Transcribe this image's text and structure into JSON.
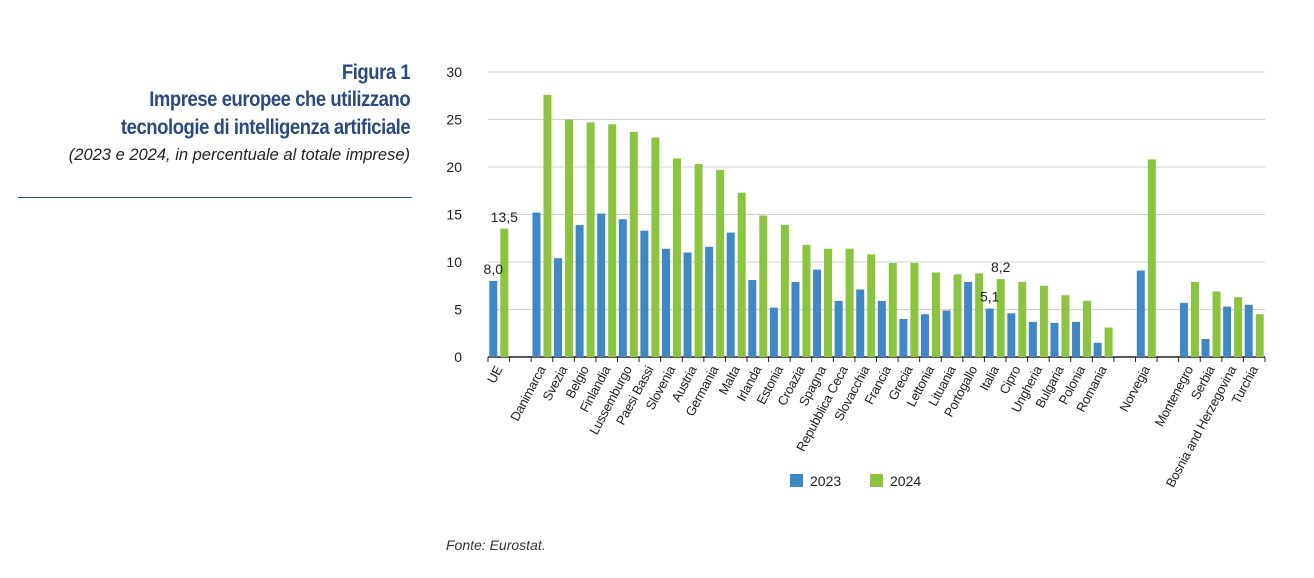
{
  "figure": {
    "number": "Figura 1",
    "title_line1": "Imprese europee che utilizzano",
    "title_line2": "tecnologie di intelligenza artificiale",
    "subtitle": "(2023 e 2024, in percentuale al totale imprese)",
    "source": "Fonte: Eurostat."
  },
  "chart_data": {
    "type": "bar",
    "categories": [
      "UE",
      "",
      "Danimarca",
      "Svezia",
      "Belgio",
      "Finlandia",
      "Lussemburgo",
      "Paesi Bassi",
      "Slovenia",
      "Austria",
      "Germania",
      "Malta",
      "Irlanda",
      "Estonia",
      "Croazia",
      "Spagna",
      "Repubblica Ceca",
      "Slovacchia",
      "Francia",
      "Grecia",
      "Lettonia",
      "Lituania",
      "Portogallo",
      "Italia",
      "Cipro",
      "Ungheria",
      "Bulgaria",
      "Polonia",
      "Romania",
      "",
      "Norvegia",
      "",
      "Montenegro",
      "Serbia",
      "Bosnia and Herzegovina",
      "Turchia"
    ],
    "series": [
      {
        "name": "2023",
        "color": "#3f87c7",
        "values": [
          8.0,
          null,
          15.2,
          10.4,
          13.9,
          15.1,
          14.5,
          13.3,
          11.4,
          11.0,
          11.6,
          13.1,
          8.1,
          5.2,
          7.9,
          9.2,
          5.9,
          7.1,
          5.9,
          4.0,
          4.5,
          4.9,
          7.9,
          5.1,
          4.6,
          3.7,
          3.6,
          3.7,
          1.5,
          null,
          9.1,
          null,
          5.7,
          1.9,
          5.3,
          5.5
        ]
      },
      {
        "name": "2024",
        "color": "#8cc43f",
        "values": [
          13.5,
          null,
          27.6,
          25.0,
          24.7,
          24.5,
          23.7,
          23.1,
          20.9,
          20.3,
          19.7,
          17.3,
          14.9,
          13.9,
          11.8,
          11.4,
          11.4,
          10.8,
          9.9,
          9.9,
          8.9,
          8.7,
          8.8,
          8.2,
          7.9,
          7.5,
          6.5,
          5.9,
          3.1,
          null,
          20.8,
          null,
          7.9,
          6.9,
          6.3,
          4.5
        ]
      }
    ],
    "data_labels": [
      {
        "category": "UE",
        "series": "2023",
        "text": "8,0"
      },
      {
        "category": "UE",
        "series": "2024",
        "text": "13,5"
      },
      {
        "category": "Italia",
        "series": "2023",
        "text": "5,1"
      },
      {
        "category": "Italia",
        "series": "2024",
        "text": "8,2"
      }
    ],
    "yticks": [
      "0",
      "5",
      "10",
      "15",
      "20",
      "25",
      "30"
    ],
    "ylim": [
      0,
      30
    ],
    "grid": true,
    "legend": "bottom"
  }
}
